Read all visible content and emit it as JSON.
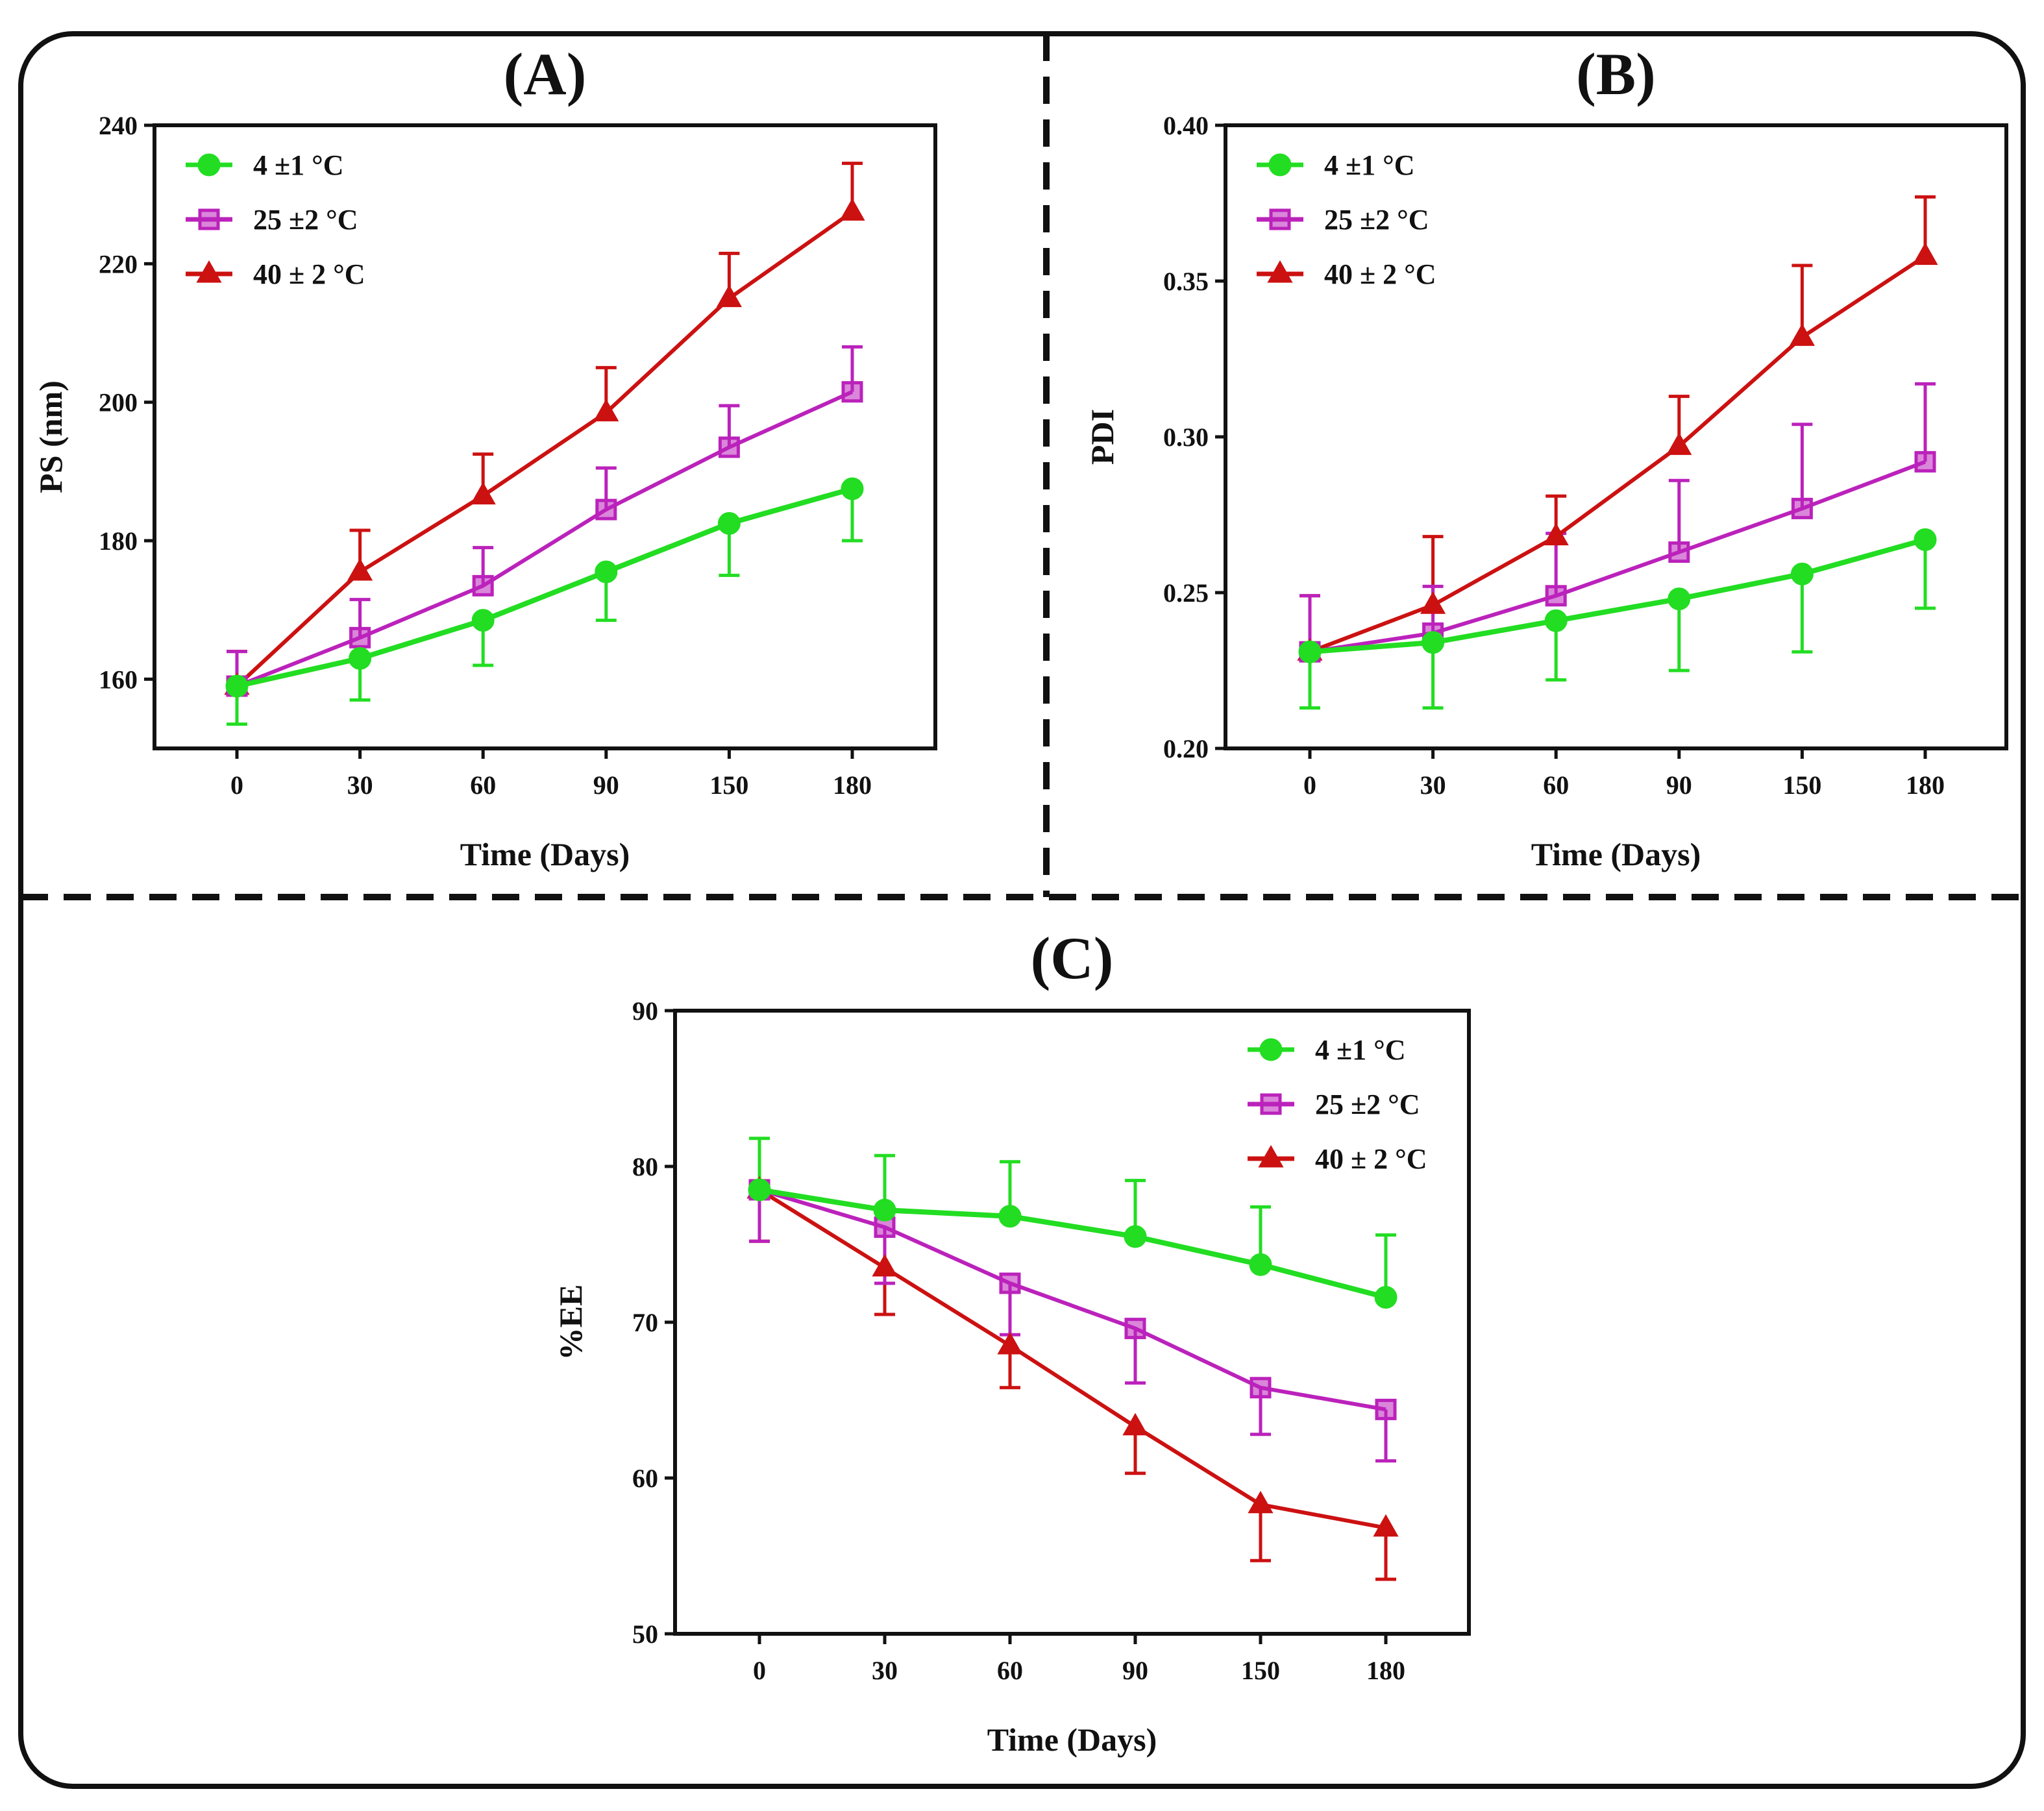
{
  "colors": {
    "s4": "#22dd22",
    "s25": "#bb22bb",
    "s40": "#cc1111",
    "frame": "#111111"
  },
  "chart_data": [
    {
      "id": "A",
      "type": "line",
      "title": "(A)",
      "xlabel": "Time (Days)",
      "ylabel": "PS (nm)",
      "categories": [
        "0",
        "30",
        "60",
        "90",
        "150",
        "180"
      ],
      "ylim": [
        150,
        240
      ],
      "yticks": [
        160,
        180,
        200,
        220,
        240
      ],
      "ytick_labels": [
        "160",
        "180",
        "200",
        "220",
        "240"
      ],
      "legend_position": "top-left",
      "series": [
        {
          "key": "s4",
          "name": "4 ±1 °C",
          "marker": "circle",
          "values": [
            159,
            163,
            168.5,
            175.5,
            182.5,
            187.5
          ],
          "errors": [
            5.5,
            6,
            6.5,
            7,
            7.5,
            7.5
          ],
          "error_dir": "down"
        },
        {
          "key": "s25",
          "name": "25 ±2 °C",
          "marker": "square",
          "values": [
            159,
            166,
            173.5,
            184.5,
            193.5,
            201.5
          ],
          "errors": [
            5,
            5.5,
            5.5,
            6,
            6,
            6.5
          ],
          "error_dir": "up"
        },
        {
          "key": "s40",
          "name": "40 ± 2 °C",
          "marker": "triangle",
          "values": [
            159,
            175.5,
            186.5,
            198.5,
            215,
            227.5
          ],
          "errors": [
            5,
            6,
            6,
            6.5,
            6.5,
            7
          ],
          "error_dir": "up"
        }
      ]
    },
    {
      "id": "B",
      "type": "line",
      "title": "(B)",
      "xlabel": "Time (Days)",
      "ylabel": "PDI",
      "categories": [
        "0",
        "30",
        "60",
        "90",
        "150",
        "180"
      ],
      "ylim": [
        0.2,
        0.4
      ],
      "yticks": [
        0.2,
        0.25,
        0.3,
        0.35,
        0.4
      ],
      "ytick_labels": [
        "0.20",
        "0.25",
        "0.30",
        "0.35",
        "0.40"
      ],
      "legend_position": "top-left",
      "series": [
        {
          "key": "s4",
          "name": "4 ±1 °C",
          "marker": "circle",
          "values": [
            0.231,
            0.234,
            0.241,
            0.248,
            0.256,
            0.267
          ],
          "errors": [
            0.018,
            0.021,
            0.019,
            0.023,
            0.025,
            0.022
          ],
          "error_dir": "down"
        },
        {
          "key": "s25",
          "name": "25 ±2 °C",
          "marker": "square",
          "values": [
            0.231,
            0.237,
            0.249,
            0.263,
            0.277,
            0.292
          ],
          "errors": [
            0.018,
            0.015,
            0.02,
            0.023,
            0.027,
            0.025
          ],
          "error_dir": "up"
        },
        {
          "key": "s40",
          "name": "40 ± 2 °C",
          "marker": "triangle",
          "values": [
            0.231,
            0.246,
            0.268,
            0.297,
            0.332,
            0.358
          ],
          "errors": [
            0.018,
            0.022,
            0.013,
            0.016,
            0.023,
            0.019
          ],
          "error_dir": "up"
        }
      ]
    },
    {
      "id": "C",
      "type": "line",
      "title": "(C)",
      "xlabel": "Time (Days)",
      "ylabel": "%EE",
      "categories": [
        "0",
        "30",
        "60",
        "90",
        "150",
        "180"
      ],
      "ylim": [
        50,
        90
      ],
      "yticks": [
        50,
        60,
        70,
        80,
        90
      ],
      "ytick_labels": [
        "50",
        "60",
        "70",
        "80",
        "90"
      ],
      "legend_position": "top-right",
      "series": [
        {
          "key": "s4",
          "name": "4 ±1 °C",
          "marker": "circle",
          "values": [
            78.5,
            77.2,
            76.8,
            75.5,
            73.7,
            71.6
          ],
          "errors": [
            3.3,
            3.5,
            3.5,
            3.6,
            3.7,
            4
          ],
          "error_dir": "up"
        },
        {
          "key": "s25",
          "name": "25 ±2 °C",
          "marker": "square",
          "values": [
            78.5,
            76.1,
            72.5,
            69.6,
            65.8,
            64.4
          ],
          "errors": [
            3.3,
            3.6,
            3.3,
            3.5,
            3,
            3.3
          ],
          "error_dir": "down"
        },
        {
          "key": "s40",
          "name": "40 ± 2 °C",
          "marker": "triangle",
          "values": [
            78.5,
            73.5,
            68.5,
            63.3,
            58.3,
            56.8
          ],
          "errors": [
            3.3,
            3,
            2.7,
            3,
            3.6,
            3.3
          ],
          "error_dir": "down"
        }
      ]
    }
  ]
}
